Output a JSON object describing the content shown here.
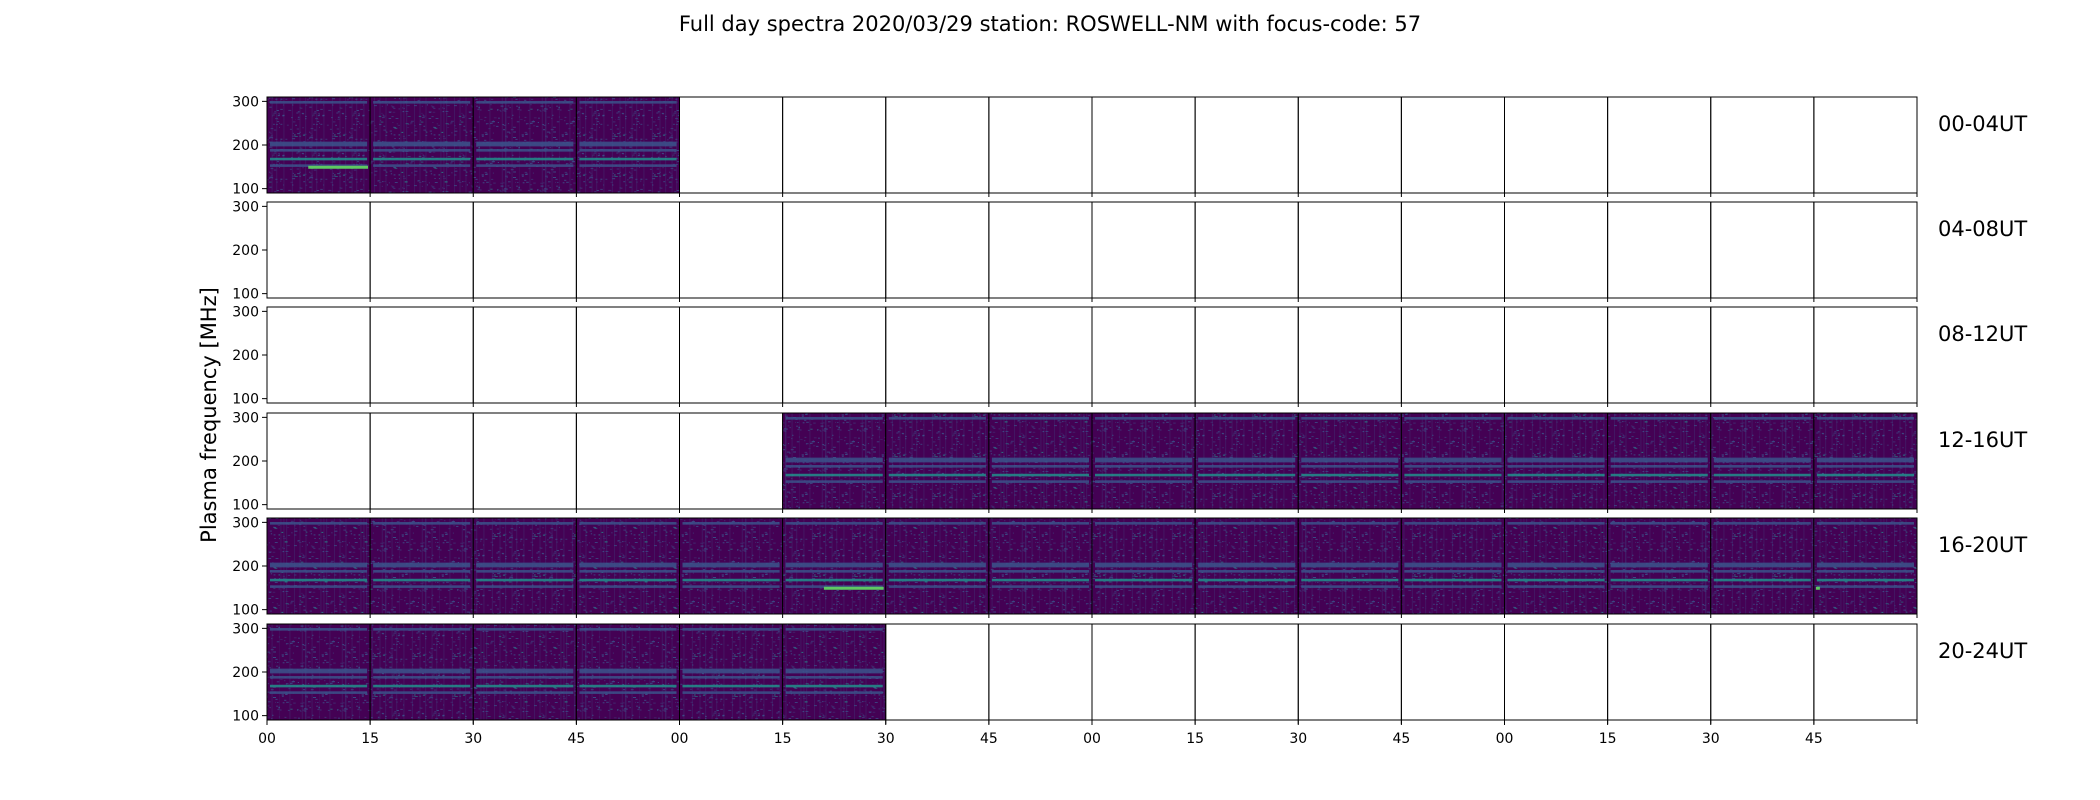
{
  "figure": {
    "title": "Full day spectra 2020/03/29 station: ROSWELL-NM with focus-code: 57"
  },
  "chart_data": {
    "type": "heatmap",
    "title": "Full day spectra 2020/03/29 station: ROSWELL-NM with focus-code: 57",
    "ylabel": "Plasma frequency [MHz]",
    "xlabel": "",
    "y_ticks": [
      100,
      200,
      300
    ],
    "ylim": [
      90,
      310
    ],
    "x_ticks": [
      "00",
      "15",
      "30",
      "45",
      "00",
      "15",
      "30",
      "45",
      "00",
      "15",
      "30",
      "45",
      "00",
      "15",
      "30",
      "45"
    ],
    "panels_per_row": 16,
    "row_labels": [
      "00-04UT",
      "04-08UT",
      "08-12UT",
      "12-16UT",
      "16-20UT",
      "20-24UT"
    ],
    "colormap": [
      "#440154",
      "#3b528b",
      "#21918c",
      "#5ec962",
      "#fde725"
    ],
    "data_presence": [
      [
        1,
        1,
        1,
        1,
        0,
        0,
        0,
        0,
        0,
        0,
        0,
        0,
        0,
        0,
        0,
        0
      ],
      [
        0,
        0,
        0,
        0,
        0,
        0,
        0,
        0,
        0,
        0,
        0,
        0,
        0,
        0,
        0,
        0
      ],
      [
        0,
        0,
        0,
        0,
        0,
        0,
        0,
        0,
        0,
        0,
        0,
        0,
        0,
        0,
        0,
        0
      ],
      [
        0,
        0,
        0,
        0,
        0,
        1,
        1,
        1,
        1,
        1,
        1,
        1,
        1,
        1,
        1,
        1
      ],
      [
        1,
        1,
        1,
        1,
        1,
        1,
        1,
        1,
        1,
        1,
        1,
        1,
        1,
        1,
        1,
        1
      ],
      [
        1,
        1,
        1,
        1,
        1,
        1,
        0,
        0,
        0,
        0,
        0,
        0,
        0,
        0,
        0,
        0
      ]
    ],
    "emission_bands_mhz": [
      153,
      168,
      188,
      200,
      205,
      298
    ],
    "bright_lines": [
      {
        "row": 0,
        "panel": 0,
        "freq_mhz": 149
      },
      {
        "row": 4,
        "panel": 5,
        "freq_mhz": 149
      },
      {
        "row": 4,
        "panel": 15,
        "freq_mhz": 149
      }
    ]
  }
}
